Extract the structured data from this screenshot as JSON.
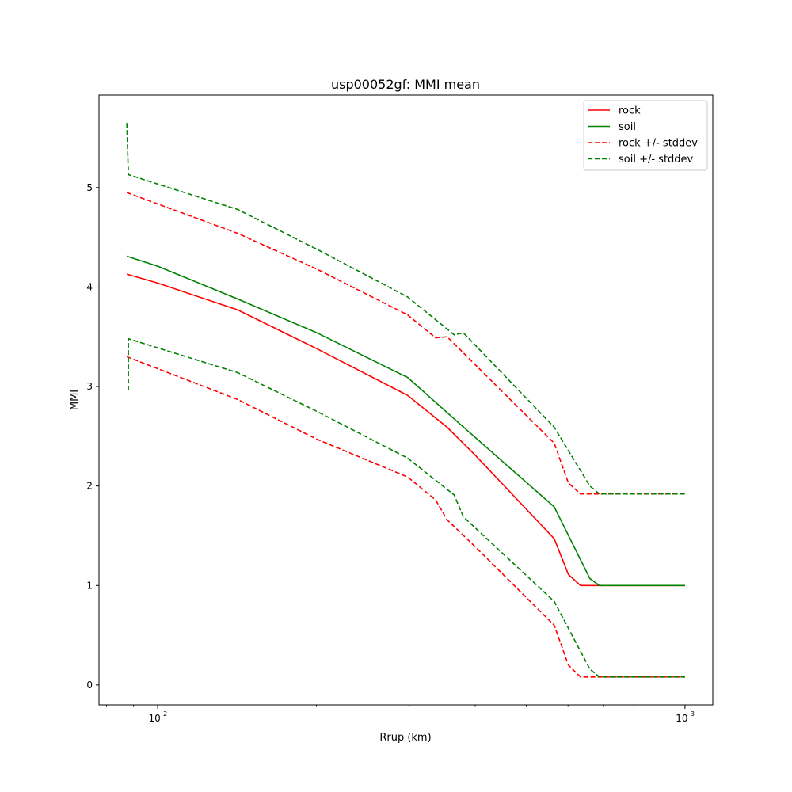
{
  "chart_data": {
    "type": "line",
    "title": "usp00052gf: MMI mean",
    "xlabel": "Rrup (km)",
    "ylabel": "MMI",
    "xscale": "log",
    "xlim": [
      77.4,
      1129
    ],
    "ylim": [
      -0.2,
      5.93
    ],
    "xticks": [
      {
        "value": 100,
        "label": "10",
        "exp": "2"
      },
      {
        "value": 1000,
        "label": "10",
        "exp": "3"
      }
    ],
    "yticks": [
      0,
      1,
      2,
      3,
      4,
      5
    ],
    "legend_position": "top-right",
    "series": [
      {
        "name": "rock",
        "color": "#ff0000",
        "dash": false,
        "x": [
          87.4,
          100,
          141.8,
          200.4,
          298,
          354,
          400,
          565,
          601,
          633.7,
          1000
        ],
        "y": [
          4.13,
          4.04,
          3.77,
          3.38,
          2.91,
          2.59,
          2.31,
          1.47,
          1.11,
          1.0,
          1.0
        ]
      },
      {
        "name": "soil",
        "color": "#008000",
        "dash": false,
        "x": [
          87.4,
          100,
          141.8,
          200.4,
          298,
          375,
          565,
          660,
          688,
          1000
        ],
        "y": [
          4.31,
          4.21,
          3.88,
          3.54,
          3.09,
          2.62,
          1.79,
          1.07,
          1.0,
          1.0
        ]
      },
      {
        "name": "rock +/- stddev",
        "color": "#ff0000",
        "dash": true,
        "x": [
          87.4,
          141.8,
          200.4,
          298,
          336.5,
          354,
          400,
          565,
          601,
          633.7,
          1000
        ],
        "y": [
          4.95,
          4.54,
          4.18,
          3.72,
          3.49,
          3.5,
          3.22,
          2.43,
          2.03,
          1.92,
          1.92
        ]
      },
      {
        "name": "rock -stddev",
        "legend": false,
        "color": "#ff0000",
        "dash": true,
        "x": [
          87.4,
          141.8,
          200.4,
          298,
          336.5,
          354,
          400,
          565,
          601,
          633.7,
          1000
        ],
        "y": [
          3.3,
          2.87,
          2.47,
          2.09,
          1.86,
          1.66,
          1.39,
          0.6,
          0.2,
          0.08,
          0.08
        ]
      },
      {
        "name": "soil +/- stddev",
        "color": "#008000",
        "dash": true,
        "x": [
          87.4,
          87.4,
          88.0,
          141.8,
          200.4,
          298,
          365,
          380,
          565,
          660,
          688,
          1000
        ],
        "y": [
          5.65,
          5.65,
          5.13,
          4.78,
          4.38,
          3.9,
          3.52,
          3.54,
          2.59,
          2.0,
          1.92,
          1.92
        ]
      },
      {
        "name": "soil -stddev",
        "legend": false,
        "color": "#008000",
        "dash": true,
        "x": [
          88.0,
          88.0,
          141.8,
          200.4,
          298,
          365,
          380,
          565,
          660,
          688,
          1000
        ],
        "y": [
          2.96,
          3.48,
          3.14,
          2.75,
          2.28,
          1.91,
          1.69,
          0.84,
          0.16,
          0.08,
          0.08
        ]
      }
    ]
  }
}
